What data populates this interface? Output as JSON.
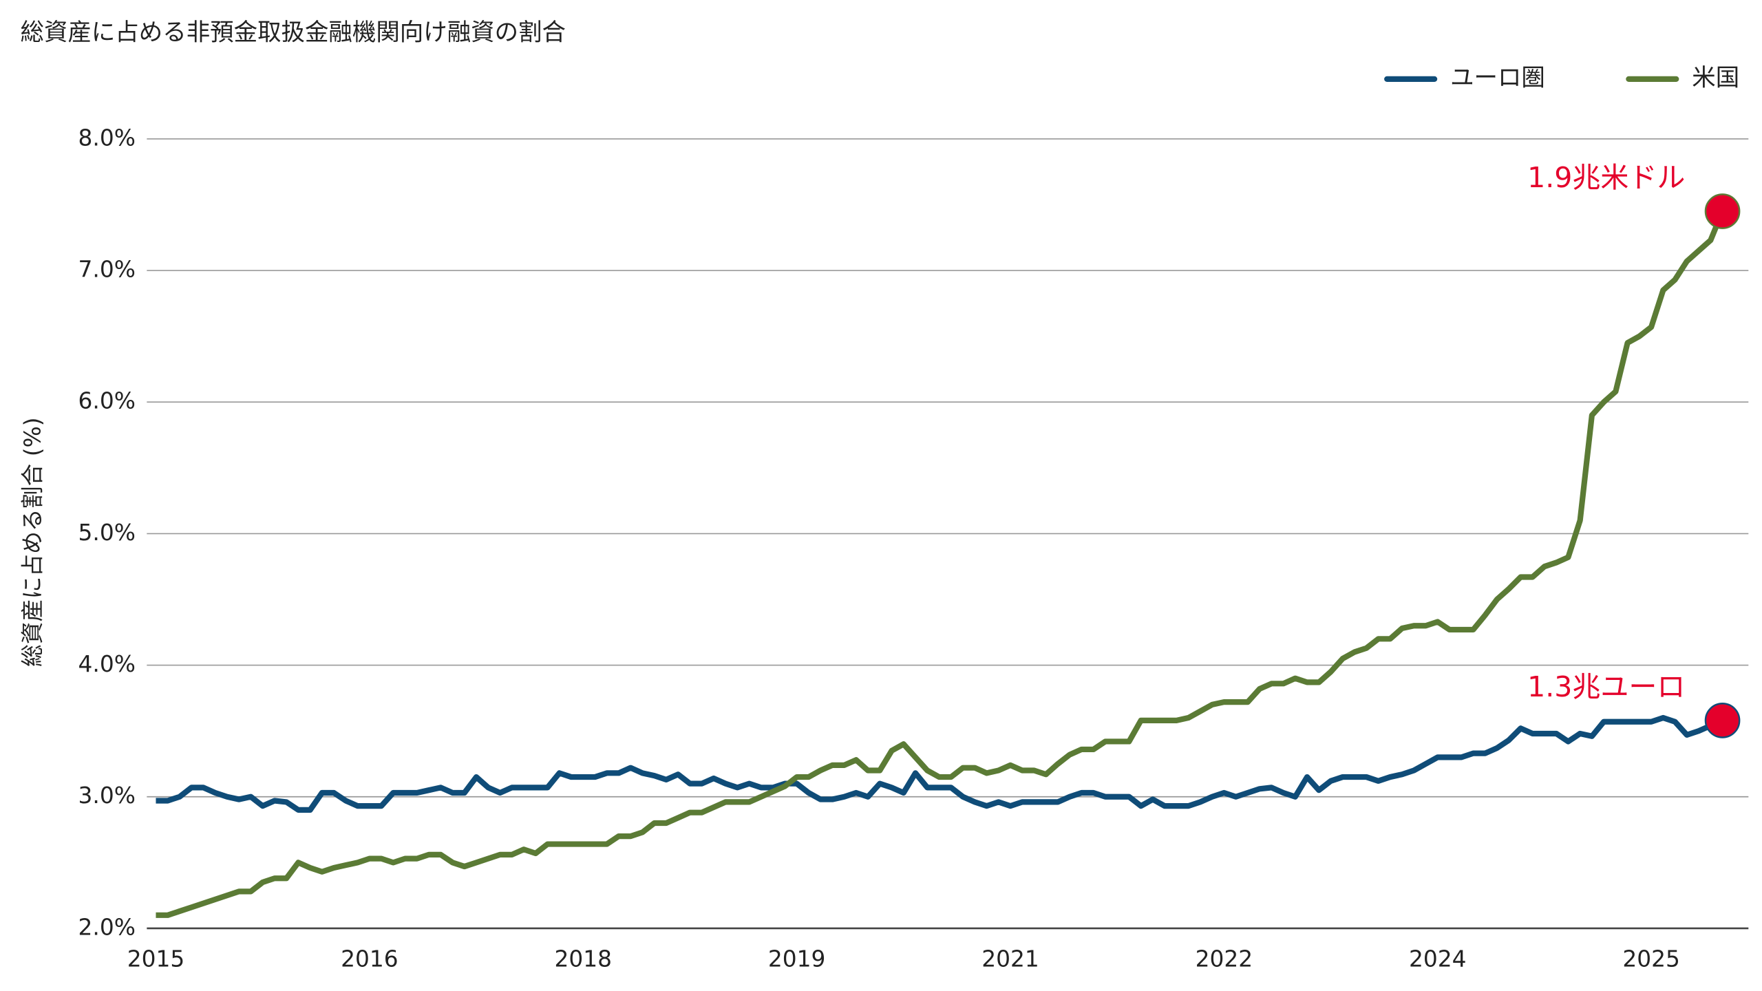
{
  "chart_data": {
    "type": "line",
    "title": "総資産に占める非預金取扱金融機関向け融資の割合",
    "ylabel": "総資産に占める割合 (%)",
    "categories": [
      "2015",
      null,
      null,
      null,
      null,
      null,
      null,
      null,
      null,
      null,
      null,
      null,
      null,
      null,
      null,
      null,
      null,
      null,
      "2016",
      null,
      null,
      null,
      null,
      null,
      null,
      null,
      null,
      null,
      null,
      null,
      null,
      null,
      null,
      null,
      null,
      null,
      "2018",
      null,
      null,
      null,
      null,
      null,
      null,
      null,
      null,
      null,
      null,
      null,
      null,
      null,
      null,
      null,
      null,
      null,
      "2019",
      null,
      null,
      null,
      null,
      null,
      null,
      null,
      null,
      null,
      null,
      null,
      null,
      null,
      null,
      null,
      null,
      null,
      "2021",
      null,
      null,
      null,
      null,
      null,
      null,
      null,
      null,
      null,
      null,
      null,
      null,
      null,
      null,
      null,
      null,
      null,
      "2022",
      null,
      null,
      null,
      null,
      null,
      null,
      null,
      null,
      null,
      null,
      null,
      null,
      null,
      null,
      null,
      null,
      null,
      "2024",
      null,
      null,
      null,
      null,
      null,
      null,
      null,
      null,
      null,
      null,
      null,
      null,
      null,
      null,
      null,
      null,
      null,
      "2025",
      null,
      null,
      null,
      null,
      null,
      null
    ],
    "ylim": [
      2,
      8
    ],
    "yticks": [
      {
        "value": 2,
        "label": "2.0%"
      },
      {
        "value": 3,
        "label": "3.0%"
      },
      {
        "value": 4,
        "label": "4.0%"
      },
      {
        "value": 5,
        "label": "5.0%"
      },
      {
        "value": 6,
        "label": "6.0%"
      },
      {
        "value": 7,
        "label": "7.0%"
      },
      {
        "value": 8,
        "label": "8.0%"
      }
    ],
    "grid": true,
    "legend": "top-right",
    "marker_color": "#e4002b",
    "series": [
      {
        "name": "ユーロ圏",
        "color": "#0f4c78",
        "end_label": "1.3兆ユーロ",
        "values": [
          2.97,
          2.97,
          3.0,
          3.07,
          3.07,
          3.03,
          3.0,
          2.98,
          3.0,
          2.93,
          2.97,
          2.96,
          2.9,
          2.9,
          3.03,
          3.03,
          2.97,
          2.93,
          2.93,
          2.93,
          3.03,
          3.03,
          3.03,
          3.05,
          3.07,
          3.03,
          3.03,
          3.15,
          3.07,
          3.03,
          3.07,
          3.07,
          3.07,
          3.07,
          3.18,
          3.15,
          3.15,
          3.15,
          3.18,
          3.18,
          3.22,
          3.18,
          3.16,
          3.13,
          3.17,
          3.1,
          3.1,
          3.14,
          3.1,
          3.07,
          3.1,
          3.07,
          3.07,
          3.1,
          3.1,
          3.03,
          2.98,
          2.98,
          3.0,
          3.03,
          3.0,
          3.1,
          3.07,
          3.03,
          3.18,
          3.07,
          3.07,
          3.07,
          3.0,
          2.96,
          2.93,
          2.96,
          2.93,
          2.96,
          2.96,
          2.96,
          2.96,
          3.0,
          3.03,
          3.03,
          3.0,
          3.0,
          3.0,
          2.93,
          2.98,
          2.93,
          2.93,
          2.93,
          2.96,
          3.0,
          3.03,
          3.0,
          3.03,
          3.06,
          3.07,
          3.03,
          3.0,
          3.15,
          3.05,
          3.12,
          3.15,
          3.15,
          3.15,
          3.12,
          3.15,
          3.17,
          3.2,
          3.25,
          3.3,
          3.3,
          3.3,
          3.33,
          3.33,
          3.37,
          3.43,
          3.52,
          3.48,
          3.48,
          3.48,
          3.42,
          3.48,
          3.46,
          3.57,
          3.57,
          3.57,
          3.57,
          3.57,
          3.6,
          3.57,
          3.47,
          3.5,
          3.54,
          3.58
        ]
      },
      {
        "name": "米国",
        "color": "#5b7b35",
        "end_label": "1.9兆米ドル",
        "values": [
          2.1,
          2.1,
          2.13,
          2.16,
          2.19,
          2.22,
          2.25,
          2.28,
          2.28,
          2.35,
          2.38,
          2.38,
          2.5,
          2.46,
          2.43,
          2.46,
          2.48,
          2.5,
          2.53,
          2.53,
          2.5,
          2.53,
          2.53,
          2.56,
          2.56,
          2.5,
          2.47,
          2.5,
          2.53,
          2.56,
          2.56,
          2.6,
          2.57,
          2.64,
          2.64,
          2.64,
          2.64,
          2.64,
          2.64,
          2.7,
          2.7,
          2.73,
          2.8,
          2.8,
          2.84,
          2.88,
          2.88,
          2.92,
          2.96,
          2.96,
          2.96,
          3.0,
          3.04,
          3.08,
          3.15,
          3.15,
          3.2,
          3.24,
          3.24,
          3.28,
          3.2,
          3.2,
          3.35,
          3.4,
          3.3,
          3.2,
          3.15,
          3.15,
          3.22,
          3.22,
          3.18,
          3.2,
          3.24,
          3.2,
          3.2,
          3.17,
          3.25,
          3.32,
          3.36,
          3.36,
          3.42,
          3.42,
          3.42,
          3.58,
          3.58,
          3.58,
          3.58,
          3.6,
          3.65,
          3.7,
          3.72,
          3.72,
          3.72,
          3.82,
          3.86,
          3.86,
          3.9,
          3.87,
          3.87,
          3.95,
          4.05,
          4.1,
          4.13,
          4.2,
          4.2,
          4.28,
          4.3,
          4.3,
          4.33,
          4.27,
          4.27,
          4.27,
          4.38,
          4.5,
          4.58,
          4.67,
          4.67,
          4.75,
          4.78,
          4.82,
          5.1,
          5.9,
          6.0,
          6.08,
          6.45,
          6.5,
          6.57,
          6.85,
          6.93,
          7.07,
          7.15,
          7.23,
          7.45
        ]
      }
    ]
  }
}
